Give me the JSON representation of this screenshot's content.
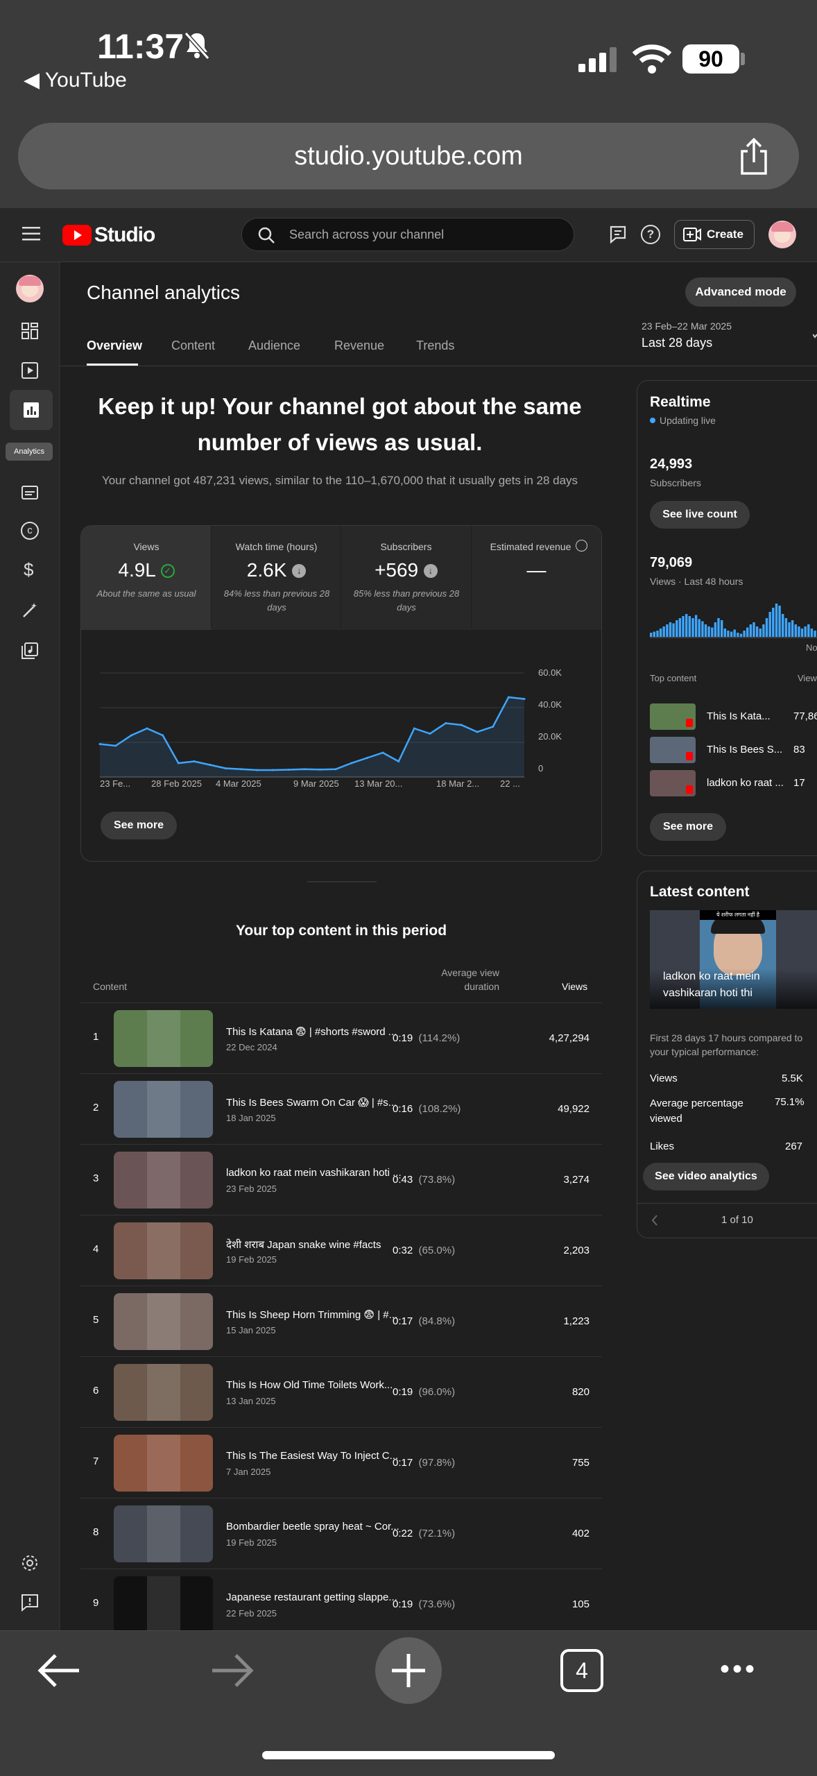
{
  "status_bar": {
    "time": "11:37",
    "back_app": "YouTube",
    "battery": "90"
  },
  "browser": {
    "url": "studio.youtube.com",
    "tabs_count": "4"
  },
  "header": {
    "brand": "Studio",
    "search_placeholder": "Search across your channel",
    "create_label": "Create"
  },
  "rail": {
    "analytics_tooltip": "Analytics"
  },
  "page": {
    "title": "Channel analytics",
    "advanced_mode": "Advanced mode",
    "date_range": "23 Feb–22 Mar 2025",
    "date_label": "Last 28 days"
  },
  "tabs": [
    "Overview",
    "Content",
    "Audience",
    "Revenue",
    "Trends"
  ],
  "summary": {
    "headline": "Keep it up! Your channel got about the same number of views as usual.",
    "subline": "Your channel got 487,231 views, similar to the 110–1,670,000 that it usually gets in 28 days"
  },
  "metrics": [
    {
      "label": "Views",
      "value": "4.9L",
      "note": "About the same as usual"
    },
    {
      "label": "Watch time (hours)",
      "value": "2.6K",
      "note": "84% less than previous 28 days"
    },
    {
      "label": "Subscribers",
      "value": "+569",
      "note": "85% less than previous 28 days"
    },
    {
      "label": "Estimated revenue",
      "value": "—",
      "note": ""
    }
  ],
  "chart_data": {
    "type": "area",
    "x": [
      "23 Feb",
      "24 Feb",
      "25 Feb",
      "26 Feb",
      "27 Feb",
      "28 Feb",
      "1 Mar",
      "2 Mar",
      "3 Mar",
      "4 Mar",
      "5 Mar",
      "6 Mar",
      "7 Mar",
      "8 Mar",
      "9 Mar",
      "10 Mar",
      "11 Mar",
      "12 Mar",
      "13 Mar",
      "14 Mar",
      "15 Mar",
      "16 Mar",
      "17 Mar",
      "18 Mar",
      "19 Mar",
      "20 Mar",
      "21 Mar",
      "22 Mar"
    ],
    "values": [
      19000,
      18000,
      24000,
      28000,
      24000,
      8000,
      9000,
      7000,
      5000,
      4500,
      4000,
      4000,
      4200,
      4500,
      4300,
      4500,
      8000,
      11000,
      14000,
      9000,
      28000,
      25000,
      31000,
      30000,
      26000,
      29000,
      46000,
      45000
    ],
    "x_tick_labels": [
      "23 Fe...",
      "28 Feb 2025",
      "4 Mar 2025",
      "9 Mar 2025",
      "13 Mar 20...",
      "18 Mar 2...",
      "22 ..."
    ],
    "y_tick_labels": [
      "60.0K",
      "40.0K",
      "20.0K",
      "0"
    ],
    "ylim": [
      0,
      60000
    ],
    "grid": true
  },
  "see_more": "See more",
  "top_content": {
    "heading": "Your top content in this period",
    "col_content": "Content",
    "col_avd_line1": "Average view",
    "col_avd_line2": "duration",
    "col_views": "Views",
    "rows": [
      {
        "rank": "1",
        "title": "This Is Katana 😨 | #shorts #sword ...",
        "date": "22 Dec 2024",
        "avd": "0:19",
        "pct": "(114.2%)",
        "views": "4,27,294",
        "color": "#5d7d4f"
      },
      {
        "rank": "2",
        "title": "This Is Bees Swarm On Car 😱 | #s...",
        "date": "18 Jan 2025",
        "avd": "0:16",
        "pct": "(108.2%)",
        "views": "49,922",
        "color": "#5c6878"
      },
      {
        "rank": "3",
        "title": "ladkon ko raat mein vashikaran hoti ...",
        "date": "23 Feb 2025",
        "avd": "0:43",
        "pct": "(73.8%)",
        "views": "3,274",
        "color": "#6b5456"
      },
      {
        "rank": "4",
        "title": "देशी शराब Japan snake wine #facts",
        "date": "19 Feb 2025",
        "avd": "0:32",
        "pct": "(65.0%)",
        "views": "2,203",
        "color": "#7a5a4e"
      },
      {
        "rank": "5",
        "title": "This Is Sheep Horn Trimming 😨 | #...",
        "date": "15 Jan 2025",
        "avd": "0:17",
        "pct": "(84.8%)",
        "views": "1,223",
        "color": "#7b6a64"
      },
      {
        "rank": "6",
        "title": "This Is How Old Time Toilets Work...",
        "date": "13 Jan 2025",
        "avd": "0:19",
        "pct": "(96.0%)",
        "views": "820",
        "color": "#6d5a4c"
      },
      {
        "rank": "7",
        "title": "This Is The Easiest Way To Inject C...",
        "date": "7 Jan 2025",
        "avd": "0:17",
        "pct": "(97.8%)",
        "views": "755",
        "color": "#8c5540"
      },
      {
        "rank": "8",
        "title": "Bombardier beetle spray heat ~ Cor...",
        "date": "19 Feb 2025",
        "avd": "0:22",
        "pct": "(72.1%)",
        "views": "402",
        "color": "#454a55"
      },
      {
        "rank": "9",
        "title": "Japanese restaurant getting slappe...",
        "date": "22 Feb 2025",
        "avd": "0:19",
        "pct": "(73.6%)",
        "views": "105",
        "color": "#111111"
      }
    ]
  },
  "realtime": {
    "title": "Realtime",
    "updating": "Updating live",
    "subscribers_value": "24,993",
    "subscribers_label": "Subscribers",
    "see_live": "See live count",
    "views_value": "79,069",
    "views_label": "Views · Last 48 hours",
    "now_label": "No",
    "top_content": "Top content",
    "views_col": "View",
    "items": [
      {
        "title": "This Is Kata...",
        "views": "77,86",
        "color": "#5d7d4f"
      },
      {
        "title": "This Is Bees S...",
        "views": "83",
        "color": "#5c6878"
      },
      {
        "title": "ladkon ko raat ...",
        "views": "17",
        "color": "#6b5456"
      }
    ],
    "see_more": "See more"
  },
  "latest": {
    "title": "Latest content",
    "thumb_caption": "ladkon ko raat mein vashikaran hoti thi",
    "thumb_banner": "ये शरीफ लगता नहीं है",
    "compare": "First 28 days 17 hours compared to your typical performance:",
    "stats": [
      {
        "label": "Views",
        "value": "5.5K"
      },
      {
        "label": "Average percentage viewed",
        "value": "75.1%"
      },
      {
        "label": "Likes",
        "value": "267"
      }
    ],
    "see_analytics": "See video analytics",
    "pager": "1 of 10"
  }
}
